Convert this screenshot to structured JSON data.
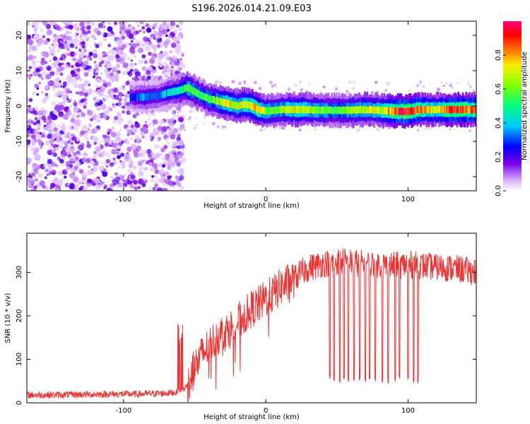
{
  "title": "S196.2026.014.21.09.E03",
  "chart_data": [
    {
      "type": "heatmap",
      "xlabel": "Height of straight line (km)",
      "ylabel": "Frequency (Hz)",
      "xlim": [
        -168,
        148
      ],
      "ylim": [
        -24,
        24
      ],
      "xticks": [
        -100,
        0,
        100
      ],
      "yticks": [
        -20,
        -10,
        0,
        10,
        20
      ],
      "colorbar": {
        "label": "Normalized spectral amplitude",
        "range": [
          0,
          1
        ],
        "ticks": [
          0.0,
          0.2,
          0.4,
          0.6,
          0.8
        ],
        "colors": [
          "#ffffff",
          "#cc66ff",
          "#6600cc",
          "#0000ff",
          "#00ccff",
          "#00ff66",
          "#ccff00",
          "#ffcc00",
          "#ff3300",
          "#ff0080"
        ]
      },
      "noise_region_x": [
        -168,
        -58
      ],
      "ridge": {
        "x": [
          -95,
          -85,
          -75,
          -68,
          -60,
          -55,
          -50,
          -45,
          -40,
          -35,
          -30,
          -25,
          -20,
          -15,
          -10,
          -5,
          0,
          10,
          20,
          30,
          40,
          50,
          60,
          70,
          80,
          90,
          100,
          110,
          120,
          130,
          140,
          148
        ],
        "freq": [
          2.5,
          2.5,
          3.0,
          3.8,
          4.5,
          5.2,
          4.0,
          3.0,
          2.0,
          1.5,
          1.0,
          0.5,
          0.0,
          0.5,
          0.0,
          -1.0,
          -1.5,
          -1.0,
          -1.0,
          -1.0,
          -1.2,
          -1.2,
          -1.2,
          -1.0,
          -1.2,
          -1.5,
          -1.5,
          -1.0,
          -1.0,
          -1.0,
          -1.0,
          -1.0
        ],
        "amplitude": [
          0.25,
          0.35,
          0.3,
          0.4,
          0.45,
          0.6,
          0.55,
          0.5,
          0.55,
          0.6,
          0.7,
          0.75,
          0.65,
          0.7,
          0.75,
          0.8,
          0.6,
          0.6,
          0.7,
          0.65,
          0.6,
          0.55,
          0.6,
          0.7,
          0.65,
          0.85,
          0.95,
          0.8,
          0.7,
          0.85,
          0.9,
          0.8
        ]
      }
    },
    {
      "type": "line",
      "xlabel": "Height of straight line (km)",
      "ylabel": "SNR (10 * v/v)",
      "xlim": [
        -168,
        148
      ],
      "ylim": [
        0,
        390
      ],
      "xticks": [
        -100,
        0,
        100
      ],
      "yticks": [
        0,
        100,
        200,
        300
      ],
      "line_color": "#ee3333",
      "series": [
        {
          "name": "SNR",
          "x": [
            -168,
            -150,
            -130,
            -110,
            -90,
            -70,
            -60,
            -55,
            -50,
            -45,
            -40,
            -35,
            -30,
            -25,
            -20,
            -15,
            -10,
            -5,
            0,
            5,
            10,
            15,
            20,
            25,
            30,
            35,
            40,
            45,
            50,
            55,
            60,
            70,
            80,
            90,
            100,
            110,
            120,
            130,
            140,
            148
          ],
          "y": [
            18,
            18,
            19,
            20,
            20,
            22,
            25,
            40,
            80,
            110,
            130,
            150,
            160,
            170,
            185,
            200,
            215,
            225,
            240,
            250,
            265,
            275,
            285,
            300,
            310,
            315,
            320,
            322,
            325,
            325,
            322,
            320,
            318,
            316,
            318,
            315,
            312,
            310,
            305,
            300
          ]
        }
      ],
      "dropouts_x": [
        45,
        48,
        52,
        55,
        58,
        62,
        66,
        70,
        73,
        77,
        82,
        86,
        91,
        94,
        100,
        104,
        107
      ]
    }
  ]
}
